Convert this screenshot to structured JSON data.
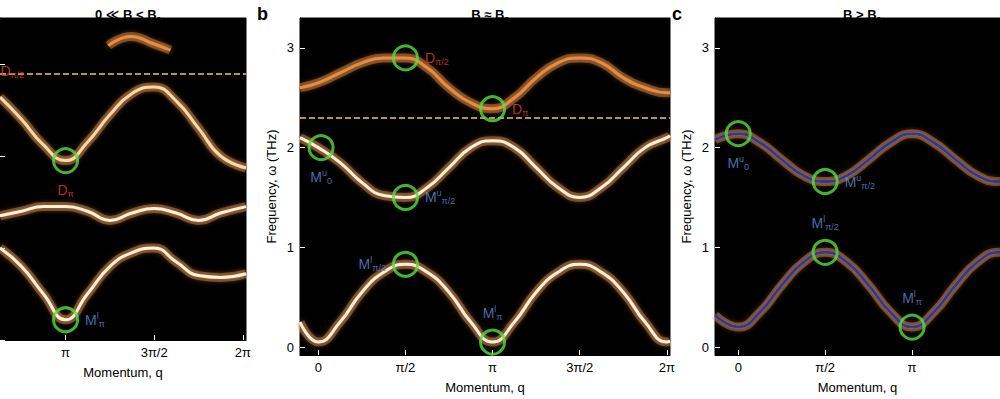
{
  "chart_data": [
    {
      "type": "line",
      "title": {
        "main": "0 ≪ B < B",
        "sub": "c"
      },
      "xlabel": "Momentum, q",
      "xlim": [
        1.98,
        6.34
      ],
      "ylim": [
        0,
        3.5
      ],
      "xticks": [
        {
          "value": 3.1416,
          "label": "π"
        },
        {
          "value": 4.7124,
          "label": "3π/2"
        },
        {
          "value": 6.2832,
          "label": "2π"
        }
      ],
      "yticks": [
        0,
        1,
        2,
        3
      ],
      "tick_labels": "x",
      "series": [
        {
          "color": "#fff0d8",
          "line_style": "solid",
          "x": [
            1.98,
            2.36,
            2.75,
            3.1416,
            3.53,
            3.93,
            4.32,
            4.71,
            5.1,
            5.5,
            5.89,
            6.34
          ],
          "values": [
            1.0,
            0.8,
            0.5,
            0.22,
            0.5,
            0.8,
            0.95,
            1.0,
            0.85,
            0.7,
            0.68,
            0.72
          ]
        },
        {
          "color": "#fff0d8",
          "line_style": "solid",
          "x": [
            1.98,
            2.36,
            2.75,
            3.1416,
            3.53,
            3.93,
            4.32,
            4.71,
            5.1,
            5.5,
            5.89,
            6.34
          ],
          "values": [
            1.35,
            1.4,
            1.45,
            1.45,
            1.4,
            1.3,
            1.38,
            1.43,
            1.38,
            1.3,
            1.38,
            1.45
          ]
        },
        {
          "color": "#ffd9a8",
          "line_style": "solid",
          "x": [
            1.98,
            2.36,
            2.75,
            3.1416,
            3.53,
            3.93,
            4.32,
            4.71,
            5.1,
            5.5,
            5.89,
            6.34
          ],
          "values": [
            2.64,
            2.4,
            2.12,
            1.95,
            2.15,
            2.45,
            2.68,
            2.75,
            2.6,
            2.3,
            2.0,
            1.87
          ]
        },
        {
          "color": "#f08a3a",
          "line_style": "solid",
          "x": [
            3.9,
            4.3,
            4.7,
            5.0
          ],
          "values": [
            3.2,
            3.3,
            3.22,
            3.15
          ]
        }
      ],
      "reference_line": {
        "y": 2.89,
        "color": "#f2c94c",
        "line_style": "dashed"
      },
      "annotations": [
        {
          "x": 2.2,
          "y": 2.75,
          "marker": "none",
          "position": "top",
          "color": "#e0412f",
          "label": {
            "main": "D",
            "sub": "π/2"
          }
        },
        {
          "x": 3.1416,
          "y": 1.95,
          "marker": "circle",
          "position": "bottom",
          "color": "#e0412f",
          "label": {
            "main": "D",
            "sub": "π"
          }
        },
        {
          "x": 3.1416,
          "y": 0.22,
          "marker": "circle",
          "position": "right",
          "color": "#5a8fd8",
          "label": {
            "main": "M",
            "sup": "l",
            "sub": "π"
          }
        }
      ]
    },
    {
      "type": "line",
      "panel_label": "b",
      "title": {
        "main": "B ≈ B",
        "sub": "c"
      },
      "xlabel": "Momentum, q",
      "ylabel": "Frequency, ω (THz)",
      "xlim": [
        -0.33,
        6.34
      ],
      "ylim": [
        -0.08,
        3.3
      ],
      "xticks": [
        0,
        {
          "value": 1.5708,
          "label": "π/2"
        },
        {
          "value": 3.1416,
          "label": "π"
        },
        {
          "value": 4.7124,
          "label": "3π/2"
        },
        {
          "value": 6.2832,
          "label": "2π"
        }
      ],
      "yticks": [
        0,
        1,
        2,
        3
      ],
      "series": [
        {
          "color": "#fff0d8",
          "line_style": "solid",
          "x": [
            -0.33,
            0,
            0.3927,
            0.7854,
            1.1781,
            1.5708,
            1.9635,
            2.3562,
            2.7489,
            3.1416,
            3.5343,
            3.927,
            4.3197,
            4.7124,
            5.1051,
            5.4978,
            5.8905,
            6.2832,
            6.34
          ],
          "values": [
            0.25,
            0.05,
            0.25,
            0.55,
            0.75,
            0.83,
            0.75,
            0.55,
            0.25,
            0.05,
            0.25,
            0.55,
            0.75,
            0.83,
            0.75,
            0.55,
            0.25,
            0.05,
            0.06
          ]
        },
        {
          "color": "#fff0d8",
          "line_style": "solid",
          "x": [
            -0.33,
            0,
            0.3927,
            0.7854,
            1.1781,
            1.5708,
            1.9635,
            2.3562,
            2.7489,
            3.1416,
            3.5343,
            3.927,
            4.3197,
            4.7124,
            5.1051,
            5.4978,
            5.8905,
            6.2832,
            6.34
          ],
          "values": [
            2.1,
            2.0,
            1.85,
            1.65,
            1.52,
            1.5,
            1.6,
            1.8,
            2.0,
            2.07,
            2.0,
            1.8,
            1.6,
            1.5,
            1.6,
            1.8,
            2.0,
            2.1,
            2.12
          ]
        },
        {
          "color": "#f08a3a",
          "line_style": "solid",
          "x": [
            -0.33,
            0,
            0.3927,
            0.7854,
            1.1781,
            1.5708,
            1.9635,
            2.3562,
            2.7489,
            3.1416,
            3.5343,
            3.927,
            4.3197,
            4.7124,
            5.1051,
            5.4978,
            5.8905,
            6.2832,
            6.34
          ],
          "values": [
            2.6,
            2.65,
            2.75,
            2.85,
            2.9,
            2.9,
            2.8,
            2.6,
            2.45,
            2.39,
            2.5,
            2.7,
            2.85,
            2.9,
            2.85,
            2.7,
            2.6,
            2.55,
            2.55
          ]
        }
      ],
      "reference_line": {
        "y": 2.3,
        "color": "#f2c94c",
        "line_style": "dashed"
      },
      "annotations": [
        {
          "x": 1.5708,
          "y": 2.9,
          "marker": "circle",
          "position": "right",
          "color": "#e0412f",
          "label": {
            "main": "D",
            "sub": "π/2"
          }
        },
        {
          "x": 3.1416,
          "y": 2.39,
          "marker": "circle",
          "position": "right",
          "color": "#e0412f",
          "label": {
            "main": "D",
            "sub": "π"
          }
        },
        {
          "x": 0.05,
          "y": 2.0,
          "marker": "circle",
          "position": "bottom",
          "color": "#5a8fd8",
          "label": {
            "main": "M",
            "sup": "u",
            "sub": "0"
          }
        },
        {
          "x": 1.5708,
          "y": 1.5,
          "marker": "circle",
          "position": "right",
          "color": "#5a8fd8",
          "label": {
            "main": "M",
            "sup": "u",
            "sub": "π/2"
          }
        },
        {
          "x": 1.5708,
          "y": 0.83,
          "marker": "circle",
          "position": "left",
          "color": "#5a8fd8",
          "label": {
            "main": "M",
            "sup": "l",
            "sub": "π/2"
          }
        },
        {
          "x": 3.1416,
          "y": 0.05,
          "marker": "circle",
          "position": "top",
          "color": "#5a8fd8",
          "label": {
            "main": "M",
            "sup": "l",
            "sub": "π"
          }
        }
      ]
    },
    {
      "type": "line",
      "panel_label": "c",
      "title": {
        "main": "B > B",
        "sub": "c"
      },
      "xlabel": "Momentum, q",
      "ylabel": "Frequency, ω (THz)",
      "xlim": [
        -0.42,
        4.73
      ],
      "ylim": [
        -0.08,
        3.3
      ],
      "xticks": [
        0,
        {
          "value": 1.5708,
          "label": "π/2"
        },
        {
          "value": 3.1416,
          "label": "π"
        }
      ],
      "yticks": [
        0,
        1,
        2,
        3
      ],
      "series": [
        {
          "color": "#2b3a9e",
          "line_style": "solid",
          "x": [
            -0.42,
            0,
            0.3927,
            0.7854,
            1.1781,
            1.5708,
            1.9635,
            2.3562,
            2.7489,
            3.1416,
            3.5343,
            3.927,
            4.3197,
            4.7124,
            4.73
          ],
          "values": [
            2.08,
            2.14,
            2.05,
            1.88,
            1.72,
            1.66,
            1.72,
            1.88,
            2.05,
            2.14,
            2.05,
            1.88,
            1.72,
            1.66,
            1.66
          ]
        },
        {
          "color": "#2b3a9e",
          "line_style": "solid",
          "x": [
            -0.42,
            0,
            0.3927,
            0.7854,
            1.1781,
            1.5708,
            1.9635,
            2.3562,
            2.7489,
            3.1416,
            3.5343,
            3.927,
            4.3197,
            4.7124,
            4.73
          ],
          "values": [
            0.32,
            0.2,
            0.35,
            0.62,
            0.85,
            0.95,
            0.85,
            0.62,
            0.35,
            0.2,
            0.35,
            0.62,
            0.85,
            0.95,
            0.95
          ]
        }
      ],
      "annotations": [
        {
          "x": 0,
          "y": 2.14,
          "marker": "circle",
          "position": "bottom",
          "color": "#5a8fd8",
          "label": {
            "main": "M",
            "sup": "u",
            "sub": "0"
          }
        },
        {
          "x": 1.5708,
          "y": 1.66,
          "marker": "circle",
          "position": "right",
          "color": "#5a8fd8",
          "label": {
            "main": "M",
            "sup": "u",
            "sub": "π/2"
          }
        },
        {
          "x": 1.5708,
          "y": 0.95,
          "marker": "circle",
          "position": "top",
          "color": "#5a8fd8",
          "label": {
            "main": "M",
            "sup": "l",
            "sub": "π/2"
          }
        },
        {
          "x": 3.1416,
          "y": 0.2,
          "marker": "circle",
          "position": "top",
          "color": "#5a8fd8",
          "label": {
            "main": "M",
            "sup": "l",
            "sub": "π"
          }
        }
      ]
    }
  ]
}
